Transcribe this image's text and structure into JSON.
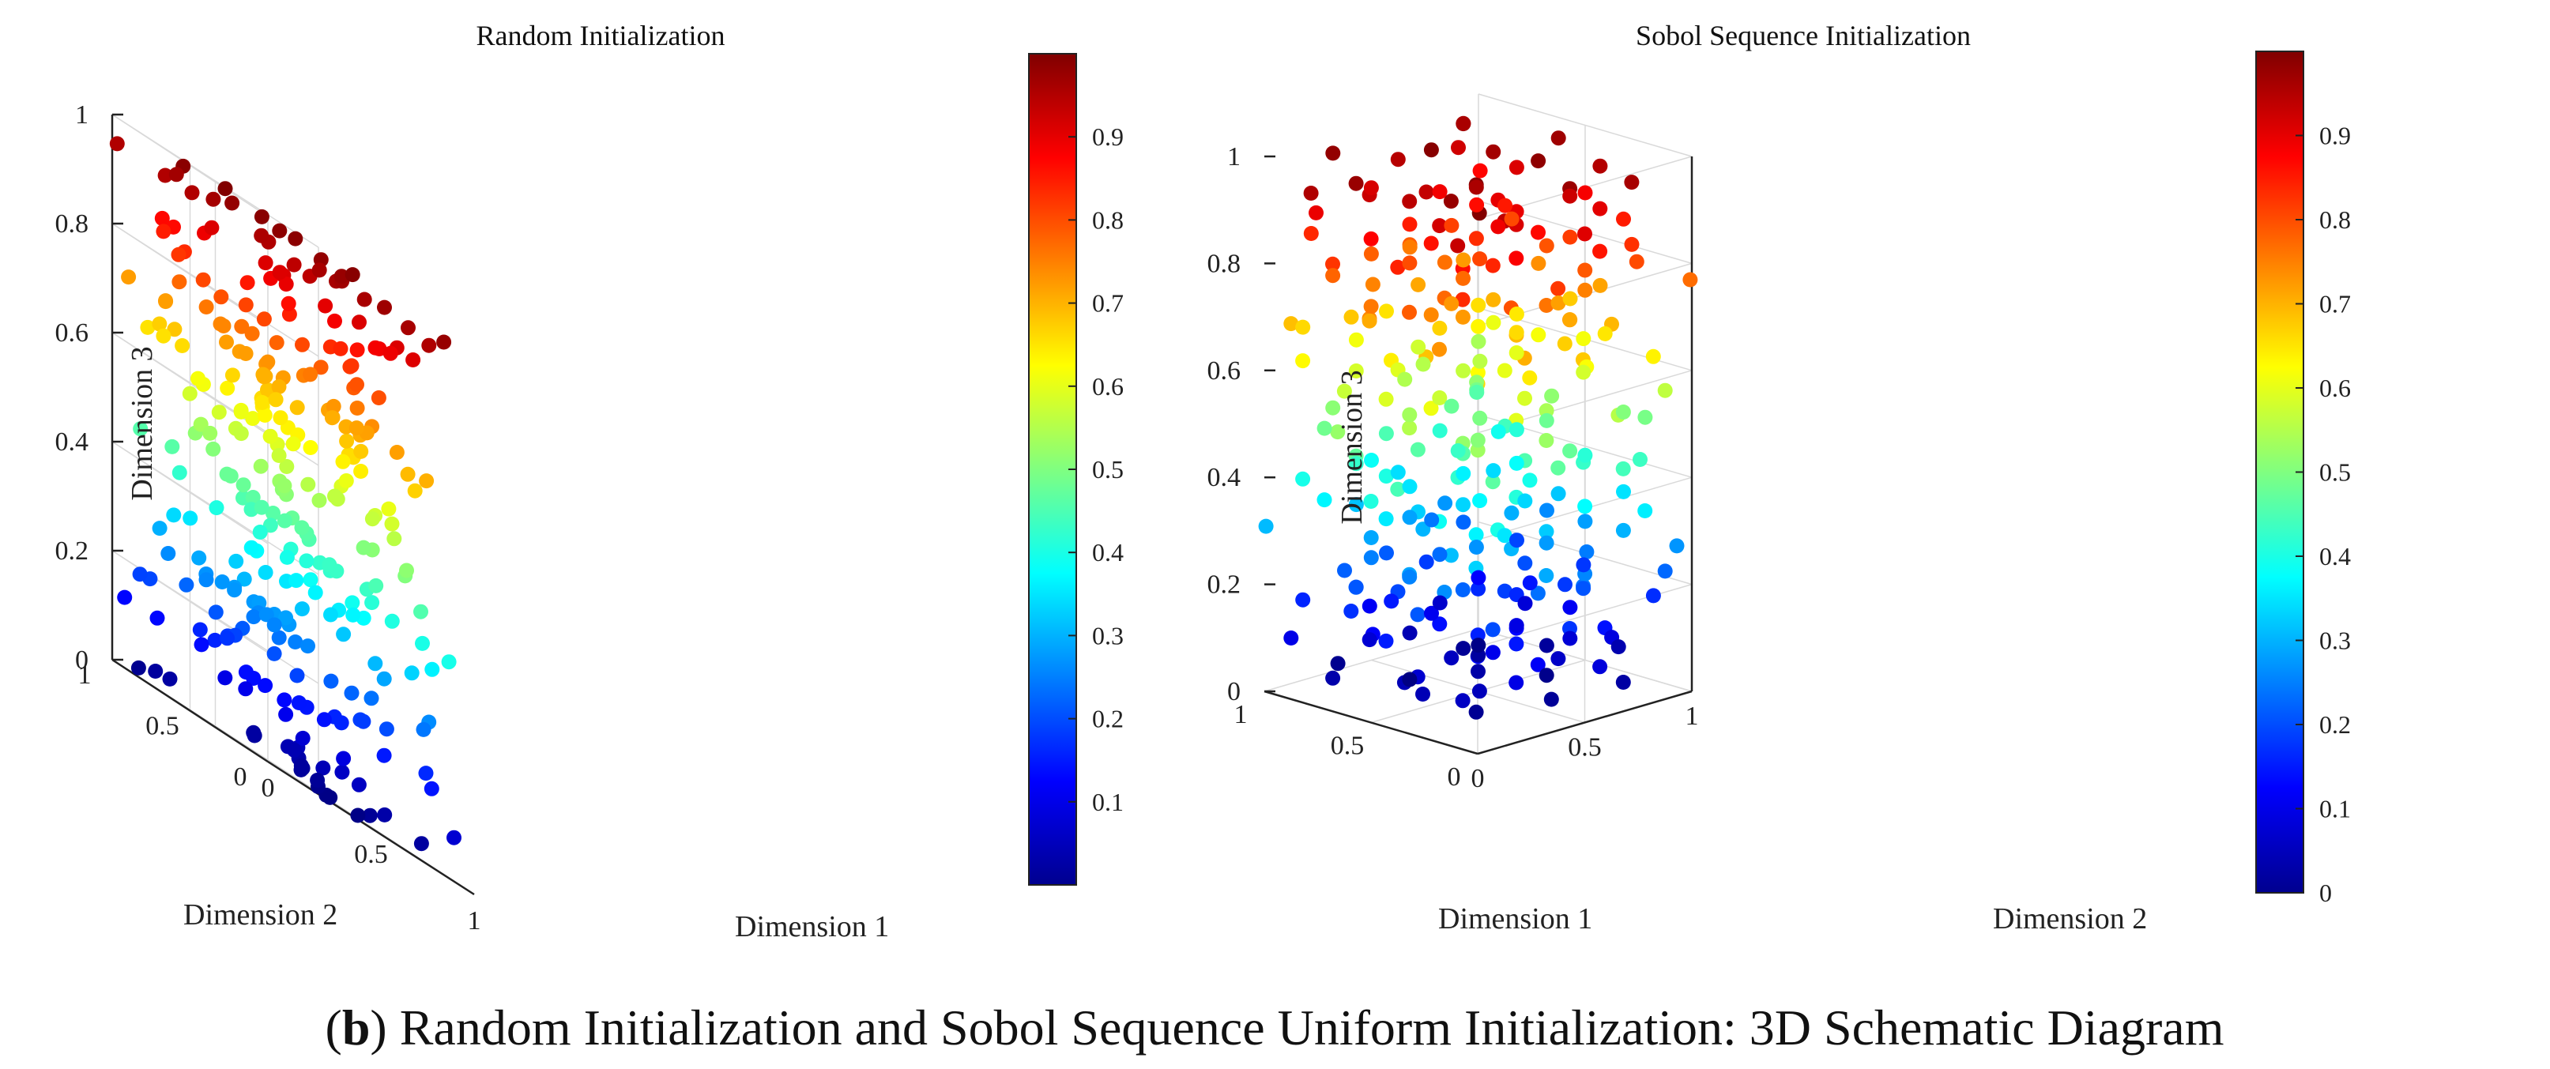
{
  "figure": {
    "caption_letter": "b",
    "caption_text": "Random Initialization and Sobol Sequence Uniform Initialization: 3D Schematic Diagram"
  },
  "chart_data": [
    {
      "type": "scatter",
      "projection": "3d",
      "title": "Random Initialization",
      "xlabel": "Dimension 1",
      "ylabel": "Dimension 2",
      "zlabel": "Dimension 3",
      "xlim": [
        0,
        1
      ],
      "ylim": [
        0,
        1
      ],
      "zlim": [
        0,
        1
      ],
      "x_ticks": [
        "0",
        "0.5",
        "1"
      ],
      "y_ticks": [
        "0",
        "0.5",
        "1"
      ],
      "z_ticks": [
        "0",
        "0.2",
        "0.4",
        "0.6",
        "0.8",
        "1"
      ],
      "color_by": "Dimension 3",
      "colorbar": {
        "colormap": "jet",
        "range": [
          0,
          1
        ],
        "tick_labels": [
          "0.1",
          "0.2",
          "0.3",
          "0.4",
          "0.5",
          "0.6",
          "0.7",
          "0.8",
          "0.9"
        ]
      },
      "point_count": 300,
      "generator": "random",
      "marker_color_scale": [
        "#00008f",
        "#0000ff",
        "#0080ff",
        "#00ffff",
        "#80ff80",
        "#ffff00",
        "#ff8000",
        "#ff0000",
        "#800000"
      ]
    },
    {
      "type": "scatter",
      "projection": "3d",
      "title": "Sobol Sequence Initialization",
      "xlabel": "Dimension 1",
      "ylabel": "Dimension 2",
      "zlabel": "Dimension 3",
      "xlim": [
        0,
        1
      ],
      "ylim": [
        0,
        1
      ],
      "zlim": [
        0,
        1
      ],
      "x_ticks": [
        "0",
        "0.5",
        "1"
      ],
      "y_ticks": [
        "0",
        "0.5",
        "1"
      ],
      "z_ticks": [
        "0",
        "0.2",
        "0.4",
        "0.6",
        "0.8",
        "1"
      ],
      "color_by": "Dimension 3",
      "colorbar": {
        "colormap": "jet",
        "range": [
          0,
          1
        ],
        "tick_labels": [
          "0",
          "0.1",
          "0.2",
          "0.3",
          "0.4",
          "0.5",
          "0.6",
          "0.7",
          "0.8",
          "0.9"
        ]
      },
      "point_count": 300,
      "generator": "sobol",
      "marker_color_scale": [
        "#00008f",
        "#0000ff",
        "#0080ff",
        "#00ffff",
        "#80ff80",
        "#ffff00",
        "#ff8000",
        "#ff0000",
        "#800000"
      ]
    }
  ]
}
